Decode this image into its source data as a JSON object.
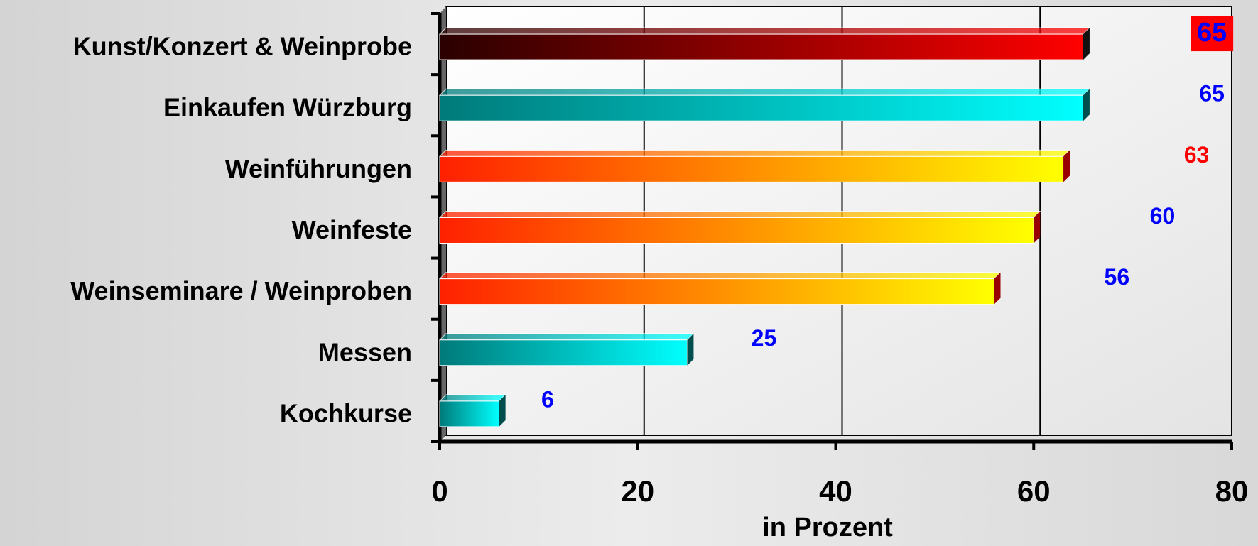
{
  "chart_data": {
    "type": "bar",
    "orientation": "horizontal",
    "x_axis_label": "in Prozent",
    "categories": [
      "Kunst/Konzert & Weinprobe",
      "Einkaufen Würzburg",
      "Weinführungen",
      "Weinfeste",
      "Weinseminare / Weinproben",
      "Messen",
      "Kochkurse"
    ],
    "values": [
      65,
      65,
      63,
      60,
      56,
      25,
      6
    ],
    "colors": [
      [
        "#2a0000",
        "#ff0000"
      ],
      [
        "#007a7a",
        "#00ffff"
      ],
      [
        "#ff2000",
        "#ffff00"
      ],
      [
        "#ff2000",
        "#ffff00"
      ],
      [
        "#ff2000",
        "#ffff00"
      ],
      [
        "#007a7a",
        "#00ffff"
      ],
      [
        "#007a7a",
        "#00ffff"
      ]
    ],
    "label_colors": [
      "#0000ff",
      "#0000ff",
      "#ff0000",
      "#0000ff",
      "#0000ff",
      "#0000ff",
      "#0000ff"
    ],
    "label_highlight": [
      "#ff0000",
      null,
      null,
      null,
      null,
      null,
      null
    ],
    "xlim": [
      0,
      80
    ],
    "xticks": [
      0,
      20,
      40,
      60,
      80
    ],
    "grid": true
  }
}
